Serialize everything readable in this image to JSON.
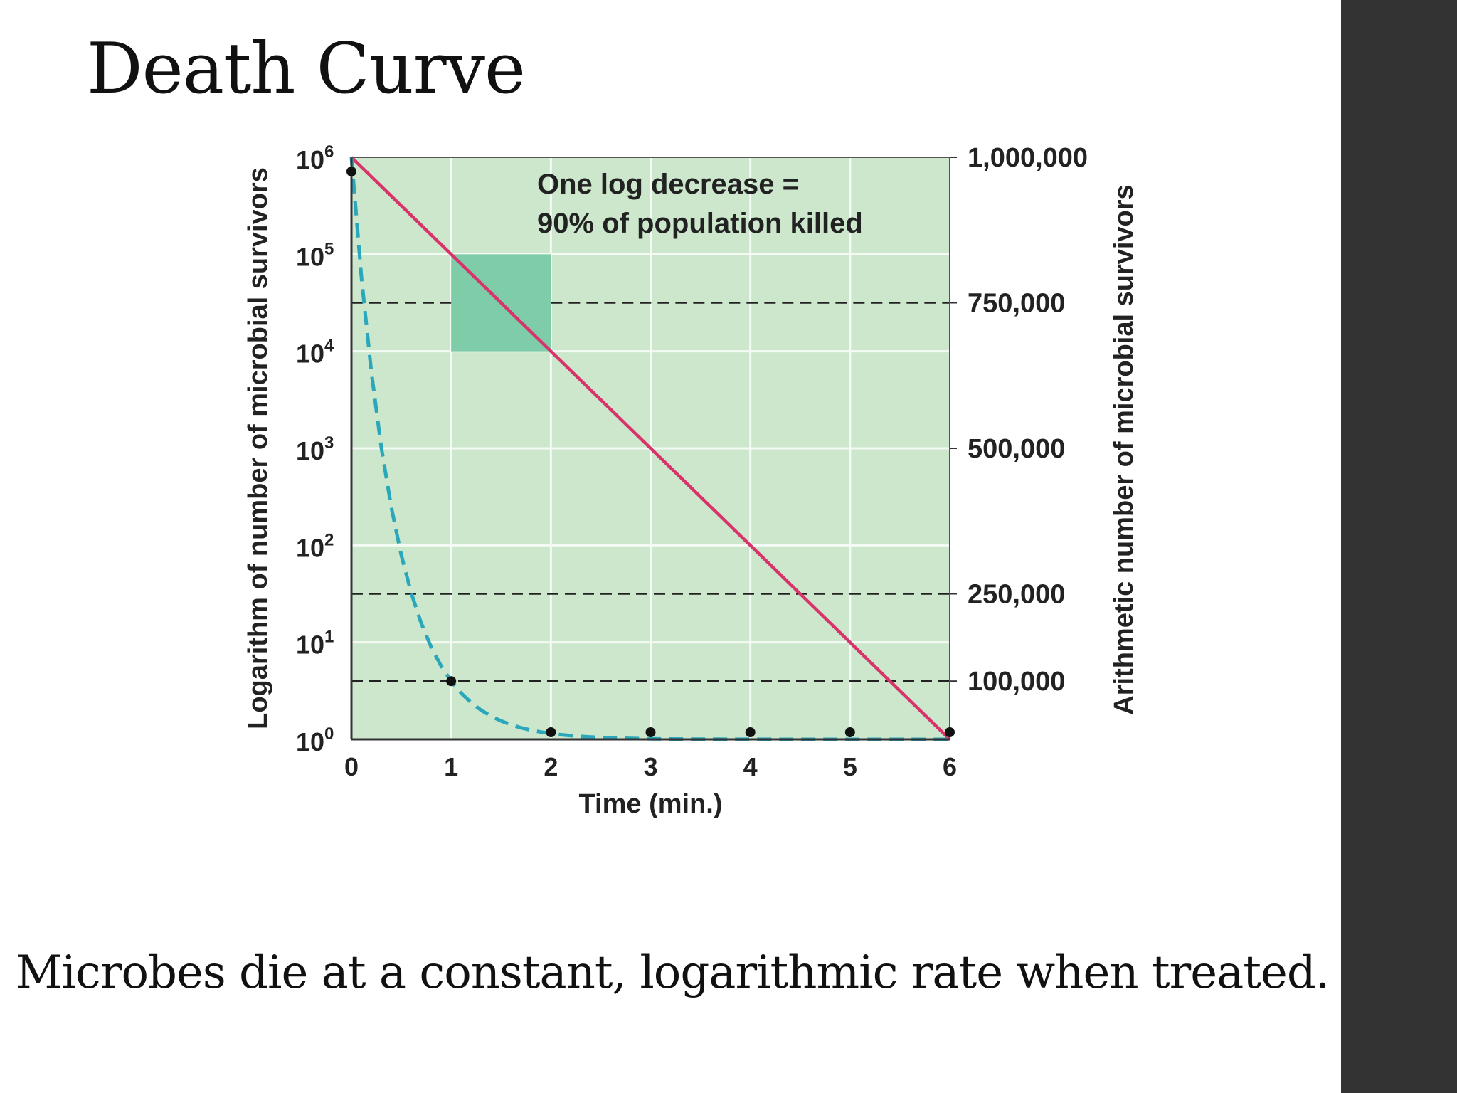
{
  "slide": {
    "title": "Death Curve",
    "caption": "Microbes die at a constant, logarithmic rate when treated."
  },
  "chart_data": {
    "type": "line",
    "xlabel": "Time (min.)",
    "ylabel_left": "Logarithm of number of microbial survivors",
    "ylabel_right": "Arithmetic number of microbial survivors",
    "x_ticks": [
      "0",
      "1",
      "2",
      "3",
      "4",
      "5",
      "6"
    ],
    "xlim": [
      0,
      6
    ],
    "left_axis": {
      "scale": "log",
      "ylim": [
        1,
        1000000
      ],
      "ticks": [
        {
          "base": "10",
          "exp": "0",
          "value": 1
        },
        {
          "base": "10",
          "exp": "1",
          "value": 10
        },
        {
          "base": "10",
          "exp": "2",
          "value": 100
        },
        {
          "base": "10",
          "exp": "3",
          "value": 1000
        },
        {
          "base": "10",
          "exp": "4",
          "value": 10000
        },
        {
          "base": "10",
          "exp": "5",
          "value": 100000
        },
        {
          "base": "10",
          "exp": "6",
          "value": 1000000
        }
      ]
    },
    "right_axis": {
      "scale": "linear",
      "ylim": [
        0,
        1000000
      ],
      "ticks": [
        {
          "label": "1,000,000",
          "value": 1000000
        },
        {
          "label": "750,000",
          "value": 750000
        },
        {
          "label": "500,000",
          "value": 500000
        },
        {
          "label": "250,000",
          "value": 250000
        },
        {
          "label": "100,000",
          "value": 100000
        }
      ],
      "dashed_reference_lines": [
        750000,
        250000,
        100000
      ]
    },
    "annotation": [
      "One log decrease =",
      "90% of population killed"
    ],
    "highlight_box": {
      "x": [
        1,
        2
      ],
      "y_log": [
        10000,
        100000
      ]
    },
    "grid": true,
    "series": [
      {
        "axis": "left",
        "style": "solid",
        "color": "#d8336a",
        "x": [
          0,
          6
        ],
        "y": [
          1000000,
          1
        ]
      },
      {
        "axis": "right",
        "style": "dashed",
        "color": "#2aa7bb",
        "x": [
          0,
          1,
          2,
          3,
          4,
          5,
          6
        ],
        "y": [
          1000000,
          100000,
          10000,
          1000,
          100,
          10,
          1
        ]
      }
    ],
    "colors": {
      "plot_background": "#cce7cc",
      "gridline": "#f4faf4",
      "highlight": "#7fcca8",
      "dashed_reference": "#222222",
      "points": "#111111"
    }
  }
}
